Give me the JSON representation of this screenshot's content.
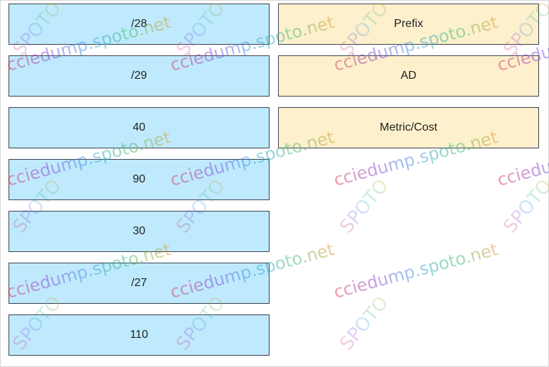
{
  "left_tiles": [
    {
      "label": "/28"
    },
    {
      "label": "/29"
    },
    {
      "label": "40"
    },
    {
      "label": "90"
    },
    {
      "label": "30"
    },
    {
      "label": "/27"
    },
    {
      "label": "110"
    }
  ],
  "right_tiles": [
    {
      "label": "Prefix"
    },
    {
      "label": "AD"
    },
    {
      "label": "Metric/Cost"
    }
  ],
  "watermark": {
    "line1": "cciedump.spoto.net",
    "line2": "SPOTO"
  },
  "colors": {
    "left_tile_bg": "#bfeafd",
    "right_tile_bg": "#fdf0cc",
    "tile_border": "#3a4150"
  }
}
